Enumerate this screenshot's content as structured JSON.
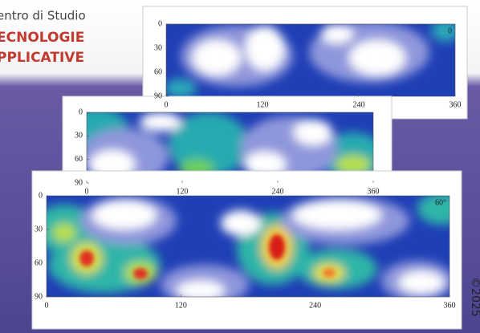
{
  "header": {
    "line1": "entro di Studio",
    "line2": "ECNOLOGIE",
    "line3": "PPLICATIVE"
  },
  "panels": [
    {
      "corner_label": "0",
      "xticks": [
        0,
        120,
        240,
        360
      ],
      "yticks": [
        0,
        30,
        60,
        90
      ]
    },
    {
      "xticks": [
        0,
        120,
        240,
        360
      ],
      "yticks": [
        0,
        30,
        60,
        90
      ]
    },
    {
      "corner_label": "60°",
      "xticks": [
        0,
        120,
        240,
        360
      ],
      "yticks": [
        0,
        30,
        60,
        90
      ]
    }
  ],
  "side_text": "©2025"
}
